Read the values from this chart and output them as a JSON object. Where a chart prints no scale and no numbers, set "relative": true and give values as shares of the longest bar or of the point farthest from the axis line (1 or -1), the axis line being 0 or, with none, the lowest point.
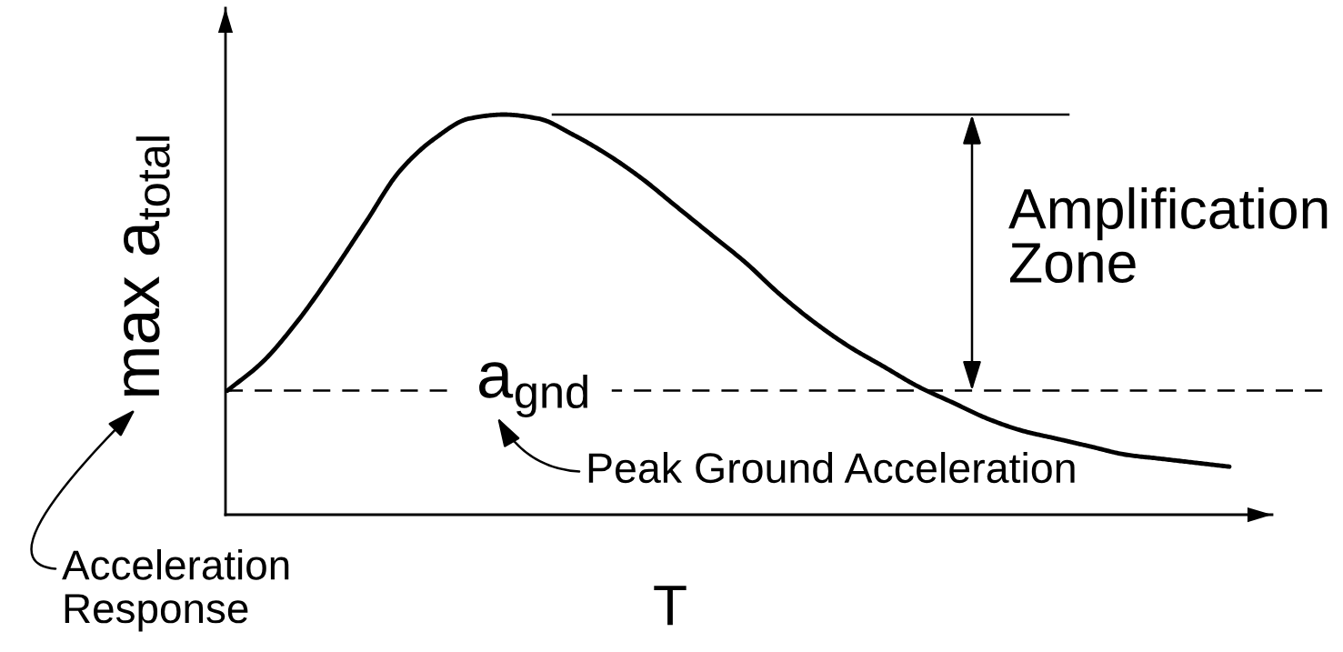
{
  "chart_data": {
    "type": "line",
    "xlabel": "T",
    "ylabel": "max a$_{total}$",
    "relative": true,
    "categories": [
      null,
      null,
      null,
      null,
      null,
      null,
      null,
      null,
      null,
      null,
      null,
      null,
      null,
      null,
      null,
      null,
      null,
      null,
      null,
      null,
      null,
      null,
      null,
      null,
      null,
      null,
      null,
      null,
      null,
      null
    ],
    "series": [
      {
        "color": "#000000",
        "values": [
          0.31,
          0.38,
          0.48,
          0.6,
          0.73,
          0.86,
          0.94,
          0.99,
          1.0,
          0.99,
          0.95,
          0.9,
          0.84,
          0.77,
          0.7,
          0.63,
          0.55,
          0.48,
          0.42,
          0.37,
          0.32,
          0.28,
          0.24,
          0.21,
          0.19,
          0.17,
          0.15,
          0.14,
          0.13,
          0.12
        ]
      }
    ],
    "ref_lines": [
      {
        "axis": "y",
        "value": 0.31,
        "label": "a$_{gnd}$",
        "line_style": "dashed",
        "color": "#000000"
      },
      {
        "axis": "y",
        "value": 1.0,
        "line_style": "solid",
        "color": "#000000"
      }
    ],
    "annotations": [
      "Amplification\nZone",
      "Peak Ground Acceleration",
      "Acceleration\nResponse"
    ]
  }
}
